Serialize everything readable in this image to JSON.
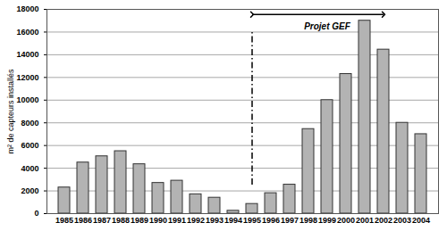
{
  "chart_data": {
    "type": "bar",
    "y_label": "m² de capteurs installés",
    "categories": [
      "1985",
      "1986",
      "1987",
      "1988",
      "1989",
      "1990",
      "1991",
      "1992",
      "1993",
      "1994",
      "1995",
      "1996",
      "1997",
      "1998",
      "1999",
      "2000",
      "2001",
      "2002",
      "2003",
      "2004"
    ],
    "values": [
      2300,
      4500,
      5050,
      5500,
      4350,
      2700,
      2900,
      1700,
      1400,
      250,
      850,
      1800,
      2550,
      7450,
      10000,
      12300,
      17000,
      14450,
      8000,
      7000
    ],
    "color": "#b3b3b3",
    "ylim": [
      0,
      18000
    ],
    "yticks": [
      0,
      2000,
      4000,
      6000,
      8000,
      10000,
      12000,
      14000,
      16000,
      18000
    ],
    "grid": true,
    "annotations": [
      {
        "text": "Projet GEF",
        "x_start": "1995",
        "x_end": "2002"
      }
    ]
  }
}
